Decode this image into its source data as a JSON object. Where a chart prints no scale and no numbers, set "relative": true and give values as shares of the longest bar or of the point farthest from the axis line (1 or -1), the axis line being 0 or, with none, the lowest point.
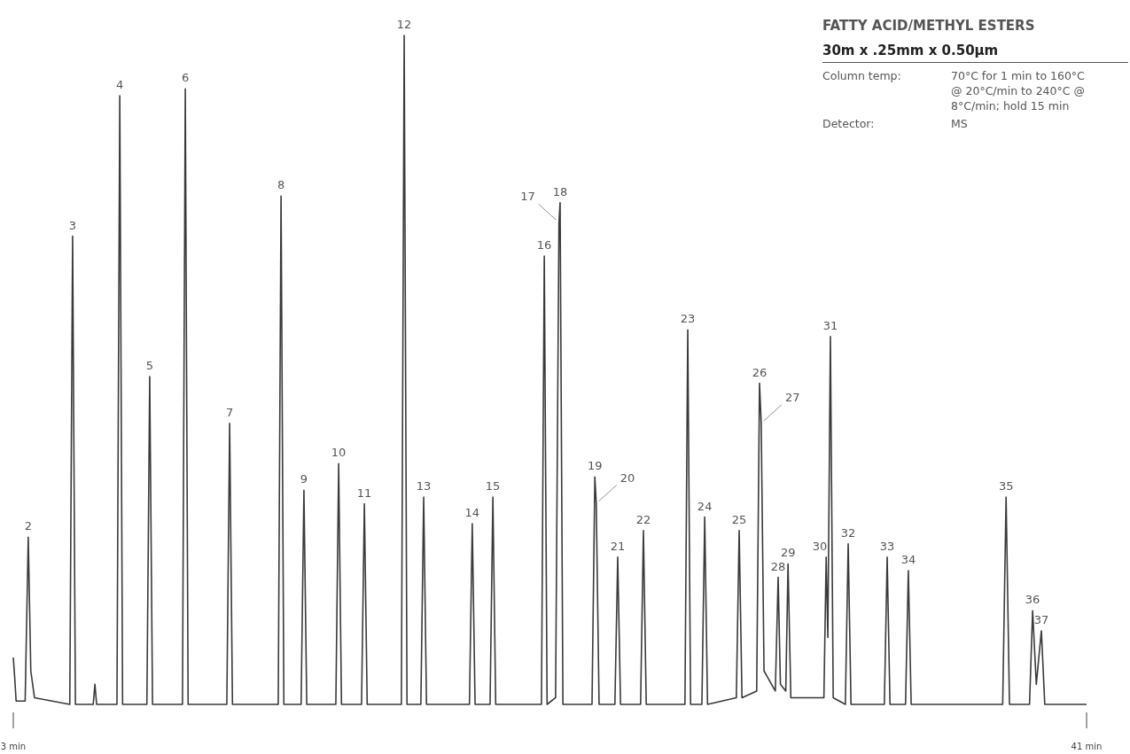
{
  "chart_data": {
    "type": "line",
    "relative": true,
    "title": "FATTY ACID/METHYL ESTERS",
    "subtitle": "30m x .25mm x 0.50µm",
    "xlim": [
      3,
      41
    ],
    "xticks": [
      {
        "value": 3,
        "label": "3 min"
      },
      {
        "value": 41,
        "label": "41 min"
      }
    ],
    "tick_labels": "x",
    "series": [
      {
        "color": "#3a3a3a",
        "x": [
          3.0,
          3.05,
          3.1,
          3.42,
          3.53,
          3.62,
          3.75,
          5.0,
          5.1,
          5.2,
          5.83,
          5.89,
          5.95,
          6.67,
          6.77,
          6.87,
          7.73,
          7.83,
          7.93,
          8.99,
          9.09,
          9.19,
          10.56,
          10.66,
          10.76,
          12.38,
          12.48,
          12.58,
          13.19,
          13.29,
          13.39,
          14.42,
          14.52,
          14.62,
          15.33,
          15.43,
          15.53,
          16.74,
          16.84,
          16.94,
          17.43,
          17.53,
          17.63,
          19.15,
          19.25,
          19.35,
          19.88,
          19.98,
          20.08,
          21.7,
          21.8,
          21.9,
          22.2,
          22.32,
          22.36,
          22.46,
          23.49,
          23.59,
          23.64,
          23.74,
          24.3,
          24.4,
          24.5,
          25.21,
          25.31,
          25.41,
          26.78,
          26.88,
          26.98,
          27.38,
          27.48,
          27.58,
          28.6,
          28.7,
          28.8,
          29.32,
          29.42,
          29.48,
          29.58,
          29.98,
          30.08,
          30.16,
          30.35,
          30.43,
          30.53,
          31.7,
          31.78,
          31.84,
          31.93,
          32.03,
          32.46,
          32.56,
          32.66,
          33.84,
          33.94,
          34.04,
          34.59,
          34.69,
          34.79,
          38.03,
          38.15,
          38.27,
          38.98,
          39.09,
          39.22,
          39.4,
          39.52,
          41
        ],
        "values": [
          0.07,
          0.04,
          0.005,
          0.005,
          0.25,
          0.05,
          0.01,
          0,
          0.7,
          0,
          0,
          0.03,
          0,
          0,
          0.91,
          0,
          0,
          0.49,
          0,
          0,
          0.92,
          0,
          0,
          0.42,
          0,
          0,
          0.76,
          0,
          0,
          0.32,
          0,
          0,
          0.36,
          0,
          0,
          0.3,
          0,
          0,
          1,
          0,
          0,
          0.31,
          0,
          0,
          0.27,
          0,
          0,
          0.31,
          0,
          0,
          0.67,
          0,
          0.01,
          0.72,
          0.75,
          0,
          0,
          0.34,
          0.3,
          0,
          0,
          0.22,
          0,
          0,
          0.26,
          0,
          0,
          0.56,
          0,
          0,
          0.28,
          0,
          0.01,
          0.26,
          0.01,
          0.02,
          0.48,
          0.42,
          0.05,
          0.02,
          0.19,
          0.03,
          0.02,
          0.21,
          0.01,
          0.01,
          0.22,
          0.1,
          0.55,
          0.01,
          0,
          0.24,
          0,
          0,
          0.22,
          0,
          0,
          0.2,
          0,
          0,
          0.31,
          0,
          0,
          0.14,
          0.03,
          0.11,
          0,
          0
        ]
      }
    ],
    "annotations": [
      {
        "text": "2",
        "x": 3.53,
        "y": 0.25
      },
      {
        "text": "3",
        "x": 5.1,
        "y": 0.7
      },
      {
        "text": "4",
        "x": 6.77,
        "y": 0.91
      },
      {
        "text": "5",
        "x": 7.83,
        "y": 0.49
      },
      {
        "text": "6",
        "x": 9.09,
        "y": 0.92
      },
      {
        "text": "7",
        "x": 10.66,
        "y": 0.42
      },
      {
        "text": "8",
        "x": 12.48,
        "y": 0.76
      },
      {
        "text": "9",
        "x": 13.29,
        "y": 0.32
      },
      {
        "text": "10",
        "x": 14.52,
        "y": 0.36
      },
      {
        "text": "11",
        "x": 15.43,
        "y": 0.3
      },
      {
        "text": "12",
        "x": 16.84,
        "y": 1
      },
      {
        "text": "13",
        "x": 17.53,
        "y": 0.31
      },
      {
        "text": "14",
        "x": 19.25,
        "y": 0.27
      },
      {
        "text": "15",
        "x": 19.98,
        "y": 0.31
      },
      {
        "text": "16",
        "x": 21.8,
        "y": 0.67
      },
      {
        "text": "17",
        "x": 22.32,
        "y": 0.72
      },
      {
        "text": "18",
        "x": 22.36,
        "y": 0.75
      },
      {
        "text": "19",
        "x": 23.59,
        "y": 0.34
      },
      {
        "text": "20",
        "x": 23.64,
        "y": 0.3
      },
      {
        "text": "21",
        "x": 24.4,
        "y": 0.22
      },
      {
        "text": "22",
        "x": 25.31,
        "y": 0.26
      },
      {
        "text": "23",
        "x": 26.88,
        "y": 0.56
      },
      {
        "text": "24",
        "x": 27.48,
        "y": 0.28
      },
      {
        "text": "25",
        "x": 28.7,
        "y": 0.26
      },
      {
        "text": "26",
        "x": 29.42,
        "y": 0.48
      },
      {
        "text": "27",
        "x": 29.48,
        "y": 0.42
      },
      {
        "text": "28",
        "x": 30.08,
        "y": 0.19
      },
      {
        "text": "29",
        "x": 30.43,
        "y": 0.21
      },
      {
        "text": "30",
        "x": 31.78,
        "y": 0.22
      },
      {
        "text": "31",
        "x": 31.93,
        "y": 0.55
      },
      {
        "text": "32",
        "x": 32.56,
        "y": 0.24
      },
      {
        "text": "33",
        "x": 33.94,
        "y": 0.22
      },
      {
        "text": "34",
        "x": 34.69,
        "y": 0.2
      },
      {
        "text": "35",
        "x": 38.15,
        "y": 0.31
      },
      {
        "text": "36",
        "x": 39.09,
        "y": 0.14
      },
      {
        "text": "37",
        "x": 39.4,
        "y": 0.11
      },
      "Column temp:",
      "70°C for 1 min to 160°C @ 20°C/min to 240°C @ 8°C/min; hold 15 min",
      "Detector:",
      "MS"
    ]
  }
}
